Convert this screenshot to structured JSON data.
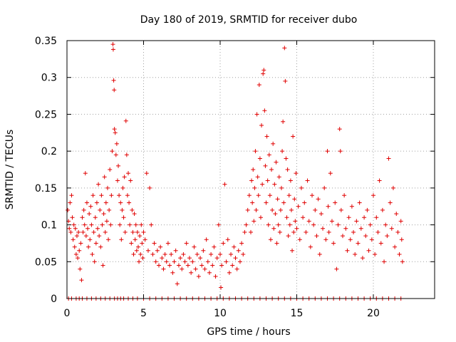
{
  "chart_data": {
    "type": "scatter",
    "title": "Day 180 of 2019, SRMTID for receiver dubo",
    "xlabel": "GPS time / hours",
    "ylabel": "SRMTID / TECUs",
    "xlim": [
      0,
      24
    ],
    "ylim": [
      0,
      0.35
    ],
    "xticks": [
      0,
      5,
      10,
      15,
      20
    ],
    "yticks": [
      0,
      0.05,
      0.1,
      0.15,
      0.2,
      0.25,
      0.3,
      0.35
    ],
    "xtick_labels": [
      "0",
      "5",
      "10",
      "15",
      "20"
    ],
    "ytick_labels": [
      "0",
      "0.05",
      "0.1",
      "0.15",
      "0.2",
      "0.25",
      "0.3",
      "0.35"
    ],
    "grid": true,
    "marker": "plus",
    "color": "#e00000",
    "series": [
      {
        "name": "SRMTID",
        "points": [
          [
            0.05,
            0.12
          ],
          [
            0.1,
            0.105
          ],
          [
            0.15,
            0.095
          ],
          [
            0.2,
            0.13
          ],
          [
            0.25,
            0.09
          ],
          [
            0.3,
            0.14
          ],
          [
            0.35,
            0.11
          ],
          [
            0.4,
            0.08
          ],
          [
            0.45,
            0.1
          ],
          [
            0.5,
            0.07
          ],
          [
            0.55,
            0.095
          ],
          [
            0.6,
            0.06
          ],
          [
            0.65,
            0.085
          ],
          [
            0.7,
            0.055
          ],
          [
            0.75,
            0.09
          ],
          [
            0.8,
            0.065
          ],
          [
            0.85,
            0.04
          ],
          [
            0.9,
            0.075
          ],
          [
            0.95,
            0.025
          ],
          [
            1.0,
            0.11
          ],
          [
            1.05,
            0.09
          ],
          [
            1.1,
            0.12
          ],
          [
            1.15,
            0.1
          ],
          [
            1.2,
            0.17
          ],
          [
            1.25,
            0.085
          ],
          [
            1.3,
            0.13
          ],
          [
            1.35,
            0.095
          ],
          [
            1.4,
            0.07
          ],
          [
            1.45,
            0.115
          ],
          [
            1.5,
            0.08
          ],
          [
            1.55,
            0.125
          ],
          [
            1.6,
            0.1
          ],
          [
            1.65,
            0.06
          ],
          [
            1.7,
            0.14
          ],
          [
            1.75,
            0.09
          ],
          [
            1.8,
            0.05
          ],
          [
            1.85,
            0.11
          ],
          [
            1.9,
            0.075
          ],
          [
            1.95,
            0.13
          ],
          [
            2.0,
            0.095
          ],
          [
            2.05,
            0.155
          ],
          [
            2.1,
            0.085
          ],
          [
            2.15,
            0.12
          ],
          [
            2.2,
            0.07
          ],
          [
            2.25,
            0.14
          ],
          [
            2.3,
            0.1
          ],
          [
            2.35,
            0.045
          ],
          [
            2.4,
            0.115
          ],
          [
            2.45,
            0.165
          ],
          [
            2.5,
            0.09
          ],
          [
            2.55,
            0.13
          ],
          [
            2.6,
            0.105
          ],
          [
            2.65,
            0.15
          ],
          [
            2.7,
            0.08
          ],
          [
            2.75,
            0.12
          ],
          [
            2.8,
            0.175
          ],
          [
            2.85,
            0.1
          ],
          [
            2.9,
            0.14
          ],
          [
            2.95,
            0.2
          ],
          [
            3.0,
            0.345
          ],
          [
            3.02,
            0.338
          ],
          [
            3.05,
            0.296
          ],
          [
            3.08,
            0.283
          ],
          [
            3.1,
            0.23
          ],
          [
            3.15,
            0.225
          ],
          [
            3.2,
            0.195
          ],
          [
            3.25,
            0.21
          ],
          [
            3.3,
            0.16
          ],
          [
            3.35,
            0.18
          ],
          [
            3.4,
            0.14
          ],
          [
            3.45,
            0.1
          ],
          [
            3.5,
            0.13
          ],
          [
            3.55,
            0.08
          ],
          [
            3.6,
            0.12
          ],
          [
            3.65,
            0.15
          ],
          [
            3.7,
            0.11
          ],
          [
            3.75,
            0.165
          ],
          [
            3.8,
            0.09
          ],
          [
            3.85,
            0.241
          ],
          [
            3.9,
            0.195
          ],
          [
            3.95,
            0.14
          ],
          [
            4.0,
            0.17
          ],
          [
            4.05,
            0.13
          ],
          [
            4.1,
            0.1
          ],
          [
            4.15,
            0.16
          ],
          [
            4.2,
            0.075
          ],
          [
            4.25,
            0.12
          ],
          [
            4.3,
            0.09
          ],
          [
            4.35,
            0.06
          ],
          [
            4.4,
            0.115
          ],
          [
            4.45,
            0.08
          ],
          [
            4.5,
            0.1
          ],
          [
            4.55,
            0.065
          ],
          [
            4.6,
            0.09
          ],
          [
            4.65,
            0.07
          ],
          [
            4.7,
            0.05
          ],
          [
            4.75,
            0.085
          ],
          [
            4.8,
            0.06
          ],
          [
            4.85,
            0.1
          ],
          [
            4.9,
            0.075
          ],
          [
            4.95,
            0.055
          ],
          [
            5.0,
            0.09
          ],
          [
            5.1,
            0.08
          ],
          [
            5.2,
            0.17
          ],
          [
            5.3,
            0.065
          ],
          [
            5.4,
            0.15
          ],
          [
            5.5,
            0.1
          ],
          [
            5.6,
            0.06
          ],
          [
            5.7,
            0.075
          ],
          [
            5.8,
            0.05
          ],
          [
            5.9,
            0.065
          ],
          [
            6.0,
            0.045
          ],
          [
            6.1,
            0.07
          ],
          [
            6.2,
            0.055
          ],
          [
            6.3,
            0.04
          ],
          [
            6.4,
            0.06
          ],
          [
            6.5,
            0.05
          ],
          [
            6.6,
            0.075
          ],
          [
            6.7,
            0.045
          ],
          [
            6.8,
            0.06
          ],
          [
            6.9,
            0.035
          ],
          [
            7.0,
            0.05
          ],
          [
            7.1,
            0.065
          ],
          [
            7.2,
            0.02
          ],
          [
            7.3,
            0.045
          ],
          [
            7.4,
            0.055
          ],
          [
            7.5,
            0.04
          ],
          [
            7.6,
            0.06
          ],
          [
            7.7,
            0.05
          ],
          [
            7.8,
            0.075
          ],
          [
            7.9,
            0.045
          ],
          [
            8.0,
            0.055
          ],
          [
            8.1,
            0.035
          ],
          [
            8.2,
            0.05
          ],
          [
            8.3,
            0.07
          ],
          [
            8.4,
            0.04
          ],
          [
            8.5,
            0.06
          ],
          [
            8.6,
            0.03
          ],
          [
            8.7,
            0.055
          ],
          [
            8.8,
            0.045
          ],
          [
            8.9,
            0.065
          ],
          [
            9.0,
            0.04
          ],
          [
            9.1,
            0.08
          ],
          [
            9.2,
            0.05
          ],
          [
            9.3,
            0.035
          ],
          [
            9.4,
            0.06
          ],
          [
            9.5,
            0.045
          ],
          [
            9.6,
            0.07
          ],
          [
            9.7,
            0.03
          ],
          [
            9.8,
            0.055
          ],
          [
            9.9,
            0.1
          ],
          [
            10.0,
            0.06
          ],
          [
            10.05,
            0.015
          ],
          [
            10.1,
            0.045
          ],
          [
            10.2,
            0.075
          ],
          [
            10.3,
            0.155
          ],
          [
            10.4,
            0.05
          ],
          [
            10.5,
            0.08
          ],
          [
            10.6,
            0.035
          ],
          [
            10.7,
            0.06
          ],
          [
            10.8,
            0.045
          ],
          [
            10.9,
            0.07
          ],
          [
            11.0,
            0.055
          ],
          [
            11.1,
            0.04
          ],
          [
            11.2,
            0.065
          ],
          [
            11.3,
            0.05
          ],
          [
            11.4,
            0.075
          ],
          [
            11.5,
            0.06
          ],
          [
            11.6,
            0.09
          ],
          [
            11.7,
            0.1
          ],
          [
            11.8,
            0.12
          ],
          [
            11.9,
            0.14
          ],
          [
            12.0,
            0.09
          ],
          [
            12.05,
            0.16
          ],
          [
            12.1,
            0.13
          ],
          [
            12.15,
            0.175
          ],
          [
            12.2,
            0.105
          ],
          [
            12.25,
            0.15
          ],
          [
            12.3,
            0.2
          ],
          [
            12.35,
            0.12
          ],
          [
            12.4,
            0.25
          ],
          [
            12.45,
            0.165
          ],
          [
            12.5,
            0.14
          ],
          [
            12.55,
            0.29
          ],
          [
            12.6,
            0.19
          ],
          [
            12.65,
            0.11
          ],
          [
            12.7,
            0.235
          ],
          [
            12.75,
            0.155
          ],
          [
            12.8,
            0.305
          ],
          [
            12.85,
            0.31
          ],
          [
            12.9,
            0.255
          ],
          [
            12.95,
            0.18
          ],
          [
            13.0,
            0.13
          ],
          [
            13.05,
            0.22
          ],
          [
            13.1,
            0.16
          ],
          [
            13.15,
            0.1
          ],
          [
            13.2,
            0.195
          ],
          [
            13.25,
            0.14
          ],
          [
            13.3,
            0.08
          ],
          [
            13.35,
            0.175
          ],
          [
            13.4,
            0.12
          ],
          [
            13.45,
            0.21
          ],
          [
            13.5,
            0.095
          ],
          [
            13.55,
            0.155
          ],
          [
            13.6,
            0.115
          ],
          [
            13.65,
            0.185
          ],
          [
            13.7,
            0.075
          ],
          [
            13.75,
            0.135
          ],
          [
            13.8,
            0.1
          ],
          [
            13.85,
            0.165
          ],
          [
            13.9,
            0.09
          ],
          [
            13.95,
            0.12
          ],
          [
            14.0,
            0.15
          ],
          [
            14.05,
            0.2
          ],
          [
            14.1,
            0.24
          ],
          [
            14.15,
            0.13
          ],
          [
            14.2,
            0.34
          ],
          [
            14.25,
            0.295
          ],
          [
            14.3,
            0.19
          ],
          [
            14.35,
            0.11
          ],
          [
            14.4,
            0.175
          ],
          [
            14.45,
            0.085
          ],
          [
            14.5,
            0.14
          ],
          [
            14.55,
            0.1
          ],
          [
            14.6,
            0.16
          ],
          [
            14.65,
            0.12
          ],
          [
            14.7,
            0.065
          ],
          [
            14.75,
            0.22
          ],
          [
            14.8,
            0.09
          ],
          [
            14.85,
            0.135
          ],
          [
            14.9,
            0.105
          ],
          [
            14.95,
            0.17
          ],
          [
            15.0,
            0.095
          ],
          [
            15.1,
            0.125
          ],
          [
            15.2,
            0.08
          ],
          [
            15.3,
            0.15
          ],
          [
            15.4,
            0.11
          ],
          [
            15.5,
            0.13
          ],
          [
            15.6,
            0.09
          ],
          [
            15.7,
            0.16
          ],
          [
            15.8,
            0.105
          ],
          [
            15.9,
            0.07
          ],
          [
            16.0,
            0.14
          ],
          [
            16.1,
            0.1
          ],
          [
            16.2,
            0.12
          ],
          [
            16.3,
            0.085
          ],
          [
            16.4,
            0.135
          ],
          [
            16.5,
            0.06
          ],
          [
            16.6,
            0.115
          ],
          [
            16.7,
            0.095
          ],
          [
            16.8,
            0.15
          ],
          [
            16.9,
            0.08
          ],
          [
            17.0,
            0.2
          ],
          [
            17.05,
            0.125
          ],
          [
            17.1,
            0.09
          ],
          [
            17.2,
            0.17
          ],
          [
            17.3,
            0.105
          ],
          [
            17.4,
            0.075
          ],
          [
            17.5,
            0.13
          ],
          [
            17.6,
            0.04
          ],
          [
            17.7,
            0.1
          ],
          [
            17.8,
            0.23
          ],
          [
            17.85,
            0.2
          ],
          [
            17.9,
            0.12
          ],
          [
            18.0,
            0.085
          ],
          [
            18.1,
            0.14
          ],
          [
            18.2,
            0.095
          ],
          [
            18.3,
            0.065
          ],
          [
            18.4,
            0.11
          ],
          [
            18.5,
            0.08
          ],
          [
            18.6,
            0.125
          ],
          [
            18.7,
            0.09
          ],
          [
            18.8,
            0.06
          ],
          [
            18.9,
            0.105
          ],
          [
            19.0,
            0.075
          ],
          [
            19.1,
            0.13
          ],
          [
            19.2,
            0.095
          ],
          [
            19.3,
            0.055
          ],
          [
            19.4,
            0.11
          ],
          [
            19.5,
            0.085
          ],
          [
            19.6,
            0.12
          ],
          [
            19.7,
            0.065
          ],
          [
            19.8,
            0.1
          ],
          [
            19.9,
            0.08
          ],
          [
            20.0,
            0.14
          ],
          [
            20.1,
            0.06
          ],
          [
            20.2,
            0.11
          ],
          [
            20.3,
            0.09
          ],
          [
            20.4,
            0.16
          ],
          [
            20.5,
            0.075
          ],
          [
            20.6,
            0.12
          ],
          [
            20.7,
            0.05
          ],
          [
            20.8,
            0.1
          ],
          [
            20.9,
            0.085
          ],
          [
            21.0,
            0.19
          ],
          [
            21.1,
            0.13
          ],
          [
            21.2,
            0.095
          ],
          [
            21.3,
            0.15
          ],
          [
            21.4,
            0.07
          ],
          [
            21.5,
            0.115
          ],
          [
            21.6,
            0.09
          ],
          [
            21.7,
            0.06
          ],
          [
            21.8,
            0.105
          ],
          [
            21.85,
            0.08
          ],
          [
            21.9,
            0.05
          ]
        ]
      }
    ],
    "zero_points_x": [
      0.1,
      0.3,
      0.6,
      0.8,
      1.0,
      1.3,
      1.6,
      1.9,
      2.2,
      2.5,
      2.8,
      3.1,
      3.3,
      3.5,
      3.7,
      4.0,
      4.3,
      4.6,
      5.0,
      5.4,
      5.8,
      6.2,
      6.6,
      7.0,
      7.4,
      7.8,
      8.2,
      8.6,
      9.0,
      9.4,
      9.8,
      10.2,
      10.6,
      11.0,
      11.4,
      11.8,
      12.2,
      12.6,
      13.0,
      13.4,
      13.8,
      14.2,
      14.6,
      15.0,
      15.4,
      15.8,
      16.2,
      16.6,
      17.0,
      17.4,
      17.8,
      18.2,
      18.6,
      19.0,
      19.4,
      19.8,
      20.2,
      20.6,
      21.0,
      21.4,
      21.8
    ]
  }
}
